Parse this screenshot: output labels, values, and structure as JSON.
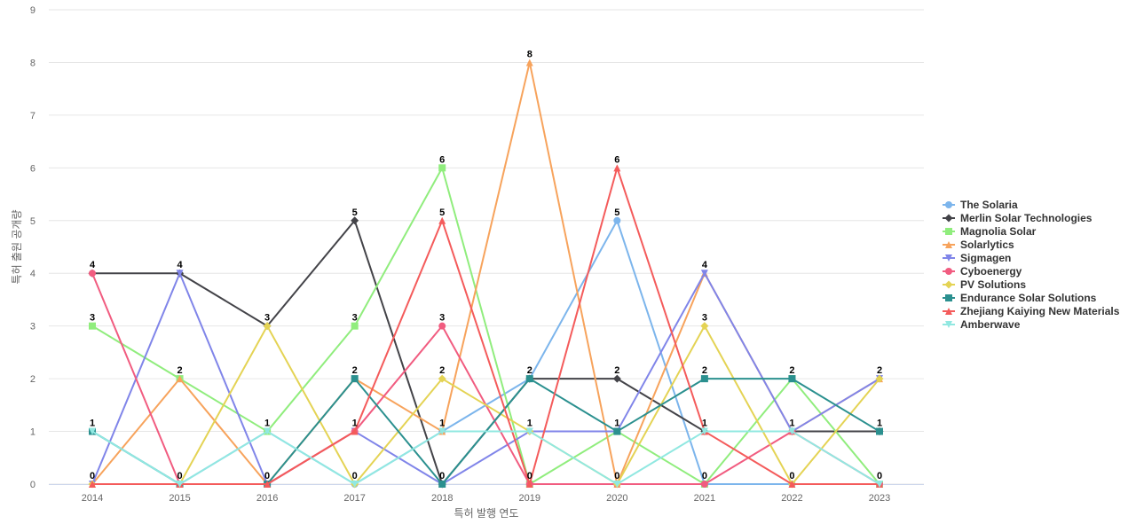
{
  "chart_data": {
    "type": "line",
    "title": "",
    "xlabel": "특허 발행 연도",
    "ylabel": "특허 출원 공개량",
    "ylim": [
      0,
      9
    ],
    "yticks": [
      0,
      1,
      2,
      3,
      4,
      5,
      6,
      7,
      8,
      9
    ],
    "categories": [
      "2014",
      "2015",
      "2016",
      "2017",
      "2018",
      "2019",
      "2020",
      "2021",
      "2022",
      "2023"
    ],
    "grid": true,
    "legend_position": "right",
    "series": [
      {
        "name": "The Solaria",
        "color": "#7cb5ec",
        "marker": "circle",
        "values": [
          1,
          0,
          1,
          0,
          1,
          2,
          5,
          0,
          0,
          0
        ]
      },
      {
        "name": "Merlin Solar Technologies",
        "color": "#434348",
        "marker": "diamond",
        "values": [
          4,
          4,
          3,
          5,
          0,
          2,
          2,
          1,
          1,
          1
        ]
      },
      {
        "name": "Magnolia Solar",
        "color": "#90ed7d",
        "marker": "square",
        "values": [
          3,
          2,
          1,
          3,
          6,
          0,
          1,
          0,
          2,
          0
        ]
      },
      {
        "name": "Solarlytics",
        "color": "#f7a35c",
        "marker": "triangle",
        "values": [
          0,
          2,
          0,
          2,
          1,
          8,
          0,
          4,
          1,
          2
        ]
      },
      {
        "name": "Sigmagen",
        "color": "#8085e9",
        "marker": "triangle-down",
        "values": [
          0,
          4,
          0,
          1,
          0,
          1,
          1,
          4,
          1,
          2
        ]
      },
      {
        "name": "Cyboenergy",
        "color": "#f15c80",
        "marker": "circle",
        "values": [
          4,
          0,
          0,
          1,
          3,
          0,
          0,
          0,
          1,
          0
        ]
      },
      {
        "name": "PV Solutions",
        "color": "#e4d354",
        "marker": "diamond",
        "values": [
          0,
          0,
          3,
          0,
          2,
          1,
          0,
          3,
          0,
          2
        ]
      },
      {
        "name": "Endurance Solar Solutions",
        "color": "#2b908f",
        "marker": "square",
        "values": [
          1,
          0,
          0,
          2,
          0,
          2,
          1,
          2,
          2,
          1
        ]
      },
      {
        "name": "Zhejiang Kaiying New Materials",
        "color": "#f45b5b",
        "marker": "triangle",
        "values": [
          0,
          0,
          0,
          1,
          5,
          0,
          6,
          1,
          0,
          0
        ]
      },
      {
        "name": "Amberwave",
        "color": "#91e8e1",
        "marker": "triangle-down",
        "values": [
          1,
          0,
          1,
          0,
          1,
          1,
          0,
          1,
          1,
          0
        ]
      }
    ],
    "data_labels": [
      {
        "category": "2014",
        "value": 4,
        "text": "4"
      },
      {
        "category": "2014",
        "value": 3,
        "text": "3"
      },
      {
        "category": "2014",
        "value": 1,
        "text": "1"
      },
      {
        "category": "2014",
        "value": 0,
        "text": "0"
      },
      {
        "category": "2015",
        "value": 4,
        "text": "4"
      },
      {
        "category": "2015",
        "value": 2,
        "text": "2"
      },
      {
        "category": "2015",
        "value": 0,
        "text": "0"
      },
      {
        "category": "2016",
        "value": 3,
        "text": "3"
      },
      {
        "category": "2016",
        "value": 1,
        "text": "1"
      },
      {
        "category": "2016",
        "value": 0,
        "text": "0"
      },
      {
        "category": "2017",
        "value": 5,
        "text": "5"
      },
      {
        "category": "2017",
        "value": 3,
        "text": "3"
      },
      {
        "category": "2017",
        "value": 2,
        "text": "2"
      },
      {
        "category": "2017",
        "value": 1,
        "text": "1"
      },
      {
        "category": "2017",
        "value": 0,
        "text": "0"
      },
      {
        "category": "2018",
        "value": 6,
        "text": "6"
      },
      {
        "category": "2018",
        "value": 5,
        "text": "5"
      },
      {
        "category": "2018",
        "value": 3,
        "text": "3"
      },
      {
        "category": "2018",
        "value": 2,
        "text": "2"
      },
      {
        "category": "2018",
        "value": 1,
        "text": "1"
      },
      {
        "category": "2018",
        "value": 0,
        "text": "0"
      },
      {
        "category": "2019",
        "value": 8,
        "text": "8"
      },
      {
        "category": "2019",
        "value": 2,
        "text": "2"
      },
      {
        "category": "2019",
        "value": 1,
        "text": "1"
      },
      {
        "category": "2019",
        "value": 0,
        "text": "0"
      },
      {
        "category": "2020",
        "value": 6,
        "text": "6"
      },
      {
        "category": "2020",
        "value": 5,
        "text": "5"
      },
      {
        "category": "2020",
        "value": 2,
        "text": "2"
      },
      {
        "category": "2020",
        "value": 1,
        "text": "1"
      },
      {
        "category": "2020",
        "value": 0,
        "text": "0"
      },
      {
        "category": "2021",
        "value": 4,
        "text": "4"
      },
      {
        "category": "2021",
        "value": 3,
        "text": "3"
      },
      {
        "category": "2021",
        "value": 2,
        "text": "2"
      },
      {
        "category": "2021",
        "value": 1,
        "text": "1"
      },
      {
        "category": "2021",
        "value": 0,
        "text": "0"
      },
      {
        "category": "2022",
        "value": 2,
        "text": "2"
      },
      {
        "category": "2022",
        "value": 1,
        "text": "1"
      },
      {
        "category": "2022",
        "value": 0,
        "text": "0"
      },
      {
        "category": "2023",
        "value": 2,
        "text": "2"
      },
      {
        "category": "2023",
        "value": 1,
        "text": "1"
      },
      {
        "category": "2023",
        "value": 0,
        "text": "0"
      }
    ]
  }
}
